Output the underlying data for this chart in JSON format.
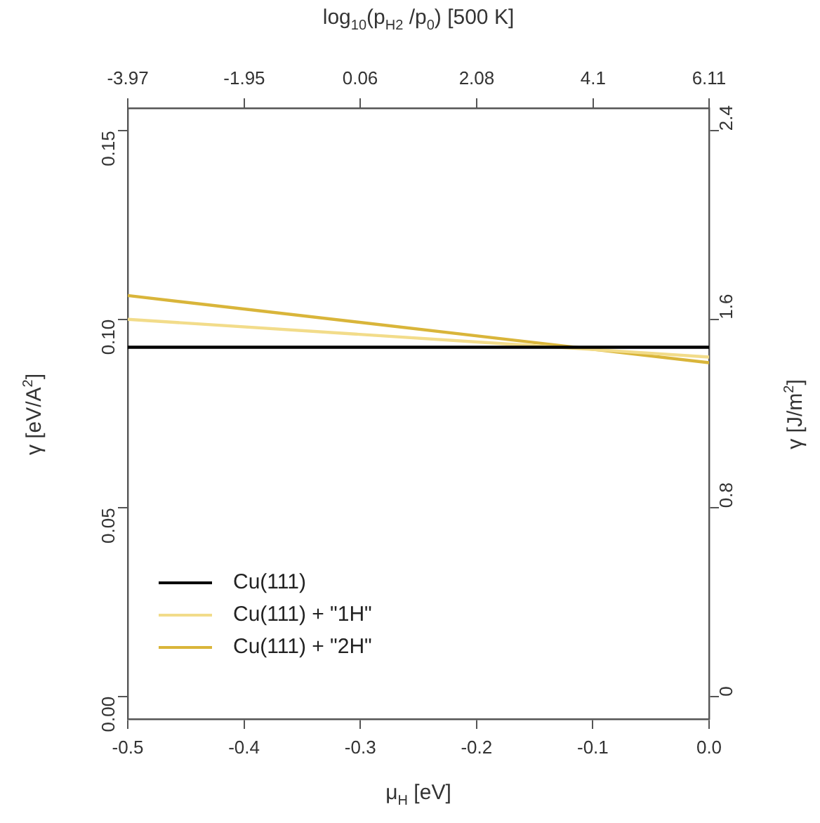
{
  "chart_data": {
    "type": "line",
    "xlabel": "μ$_{H}$ [eV]",
    "ylabel": "γ [eV/A$^{2}$]",
    "y2label": "γ [J/m$^{2}$]",
    "x2label": "log$_{10}$(p$_{H2}$ /p$_{0}$) [500 K]",
    "x": [
      -0.5,
      0
    ],
    "series": [
      {
        "name": "Cu(111)",
        "color": "#000000",
        "values": [
          0.0926,
          0.0926
        ]
      },
      {
        "name": "Cu(111) + \"1H\"",
        "color": "#f2dc8a",
        "values": [
          0.1,
          0.09
        ]
      },
      {
        "name": "Cu(111) + \"2H\"",
        "color": "#d9b53a",
        "values": [
          0.1063,
          0.0885
        ]
      }
    ],
    "xlim": [
      -0.5,
      0
    ],
    "xticks": [
      -0.5,
      -0.4,
      -0.3,
      -0.2,
      -0.1,
      {
        "value": 0,
        "label": "0.0"
      }
    ],
    "ylim": [
      -0.006,
      0.156
    ],
    "yticks": [
      {
        "value": 0,
        "label": "0.00"
      },
      {
        "value": 0.05,
        "label": "0.05"
      },
      {
        "value": 0.1,
        "label": "0.10"
      },
      {
        "value": 0.15,
        "label": "0.15"
      }
    ],
    "y2lim": [
      -0.096,
      2.496
    ],
    "y2ticks": [
      0,
      0.8,
      1.6,
      2.4
    ],
    "x2lim": [
      -3.97,
      6.11
    ],
    "x2ticks": [
      -3.97,
      -1.95,
      0.06,
      2.08,
      4.1,
      6.11
    ],
    "grid": false,
    "legend": "bottom left",
    "marker": "none",
    "line_style": "solid"
  }
}
